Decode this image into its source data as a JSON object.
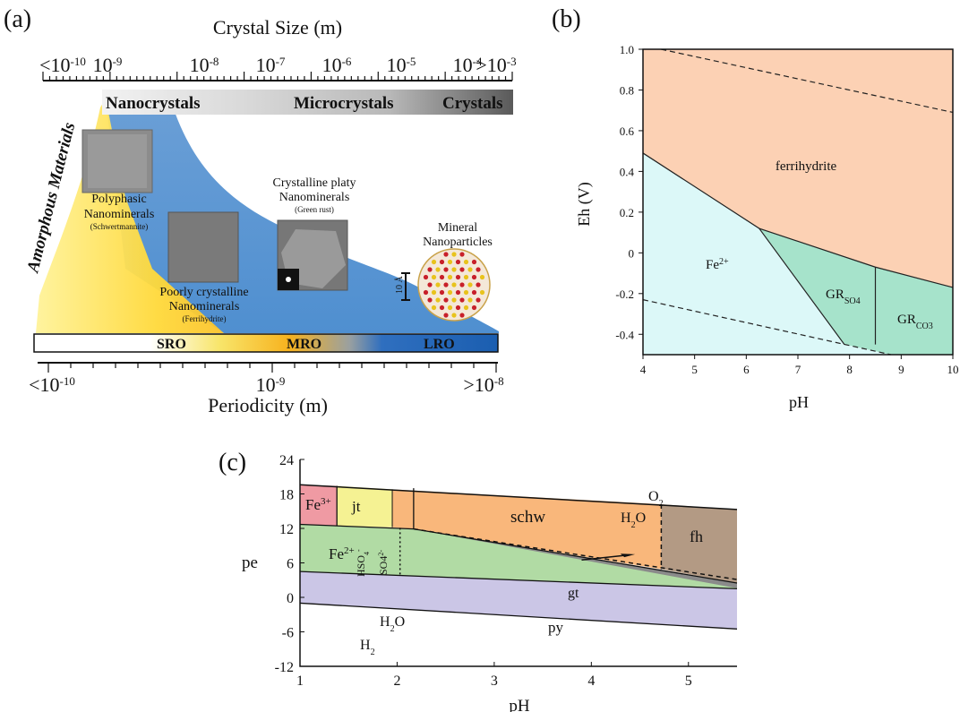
{
  "panel_a": {
    "label": "(a)",
    "crystal_size_title": "Crystal Size (m)",
    "crystal_ticks": [
      {
        "pre": "<10",
        "exp": "-10"
      },
      {
        "pre": "10",
        "exp": "-9"
      },
      {
        "pre": "10",
        "exp": "-8"
      },
      {
        "pre": "10",
        "exp": "-7"
      },
      {
        "pre": "10",
        "exp": "-6"
      },
      {
        "pre": "10",
        "exp": "-5"
      },
      {
        "pre": "10",
        "exp": "-4"
      },
      {
        "pre": ">10",
        "exp": "-3"
      }
    ],
    "size_bar": {
      "nanocrystals": "Nanocrystals",
      "microcrystals": "Microcrystals",
      "crystals": "Crystals"
    },
    "amorphous": "Amorphous Materials",
    "polyphasic": {
      "line1": "Polyphasic",
      "line2": "Nanominerals",
      "line3": "(Schwertmannite)"
    },
    "poorly": {
      "line1": "Poorly crystalline",
      "line2": "Nanominerals",
      "line3": "(Ferrihydrite)"
    },
    "platy": {
      "line1": "Crystalline platy",
      "line2": "Nanominerals",
      "line3": "(Green rust)"
    },
    "particles": {
      "line1": "Mineral",
      "line2": "Nanoparticles"
    },
    "scale_label": "10 Å",
    "order_bar": {
      "sro": "SRO",
      "mro": "MRO",
      "lro": "LRO"
    },
    "periodicity_ticks": [
      {
        "pre": "<10",
        "exp": "-10"
      },
      {
        "pre": "10",
        "exp": "-9"
      },
      {
        "pre": ">10",
        "exp": "-8"
      }
    ],
    "periodicity_title": "Periodicity (m)"
  },
  "panel_b": {
    "label": "(b)",
    "ylabel": "Eh (V)",
    "xlabel": "pH",
    "x_ticks": [
      "4",
      "5",
      "6",
      "7",
      "8",
      "9",
      "10"
    ],
    "y_ticks": [
      "1.0",
      "0.8",
      "0.6",
      "0.4",
      "0.2",
      "0",
      "-0.2",
      "-0.4"
    ],
    "regions": {
      "ferrihydrite": "ferrihydrite",
      "fe2": {
        "base": "Fe",
        "sup": "2+"
      },
      "grso4": {
        "base": "GR",
        "sub": "SO4"
      },
      "grco3": {
        "base": "GR",
        "sub": "CO3"
      }
    },
    "colors": {
      "ferrihydrite": "#fcd1b4",
      "fe2": "#dcf8f8",
      "gr": "#a6e3cb"
    }
  },
  "panel_c": {
    "label": "(c)",
    "ylabel": "pe",
    "xlabel": "pH",
    "x_ticks": [
      "1",
      "2",
      "3",
      "4",
      "5"
    ],
    "y_ticks": [
      "24",
      "18",
      "12",
      "6",
      "0",
      "-6",
      "-12"
    ],
    "regions": {
      "fe3": {
        "base": "Fe",
        "sup": "3+"
      },
      "jt": "jt",
      "schw": "schw",
      "fh": "fh",
      "fe2": {
        "base": "Fe",
        "sup": "2+"
      },
      "gt": "gt",
      "py": "py",
      "h2o_upper": {
        "base": "H",
        "sub": "2",
        "tail": "O"
      },
      "o2": {
        "base": "O",
        "sub": "2"
      },
      "h2o_lower": {
        "base": "H",
        "sub": "2",
        "tail": "O"
      },
      "h2": {
        "base": "H",
        "sub": "2"
      },
      "hso4": {
        "base": "HSO",
        "sub": "4",
        "sup": "-"
      },
      "so4": {
        "base": "SO4",
        "sup": "2-"
      }
    },
    "colors": {
      "fe3": "#ef9aa3",
      "jt": "#f5f293",
      "schw": "#f9b77b",
      "fh": "#b39a84",
      "fe2": "#b1dba4",
      "gt": "#8a8a8a",
      "py": "#cbc6e6"
    }
  }
}
